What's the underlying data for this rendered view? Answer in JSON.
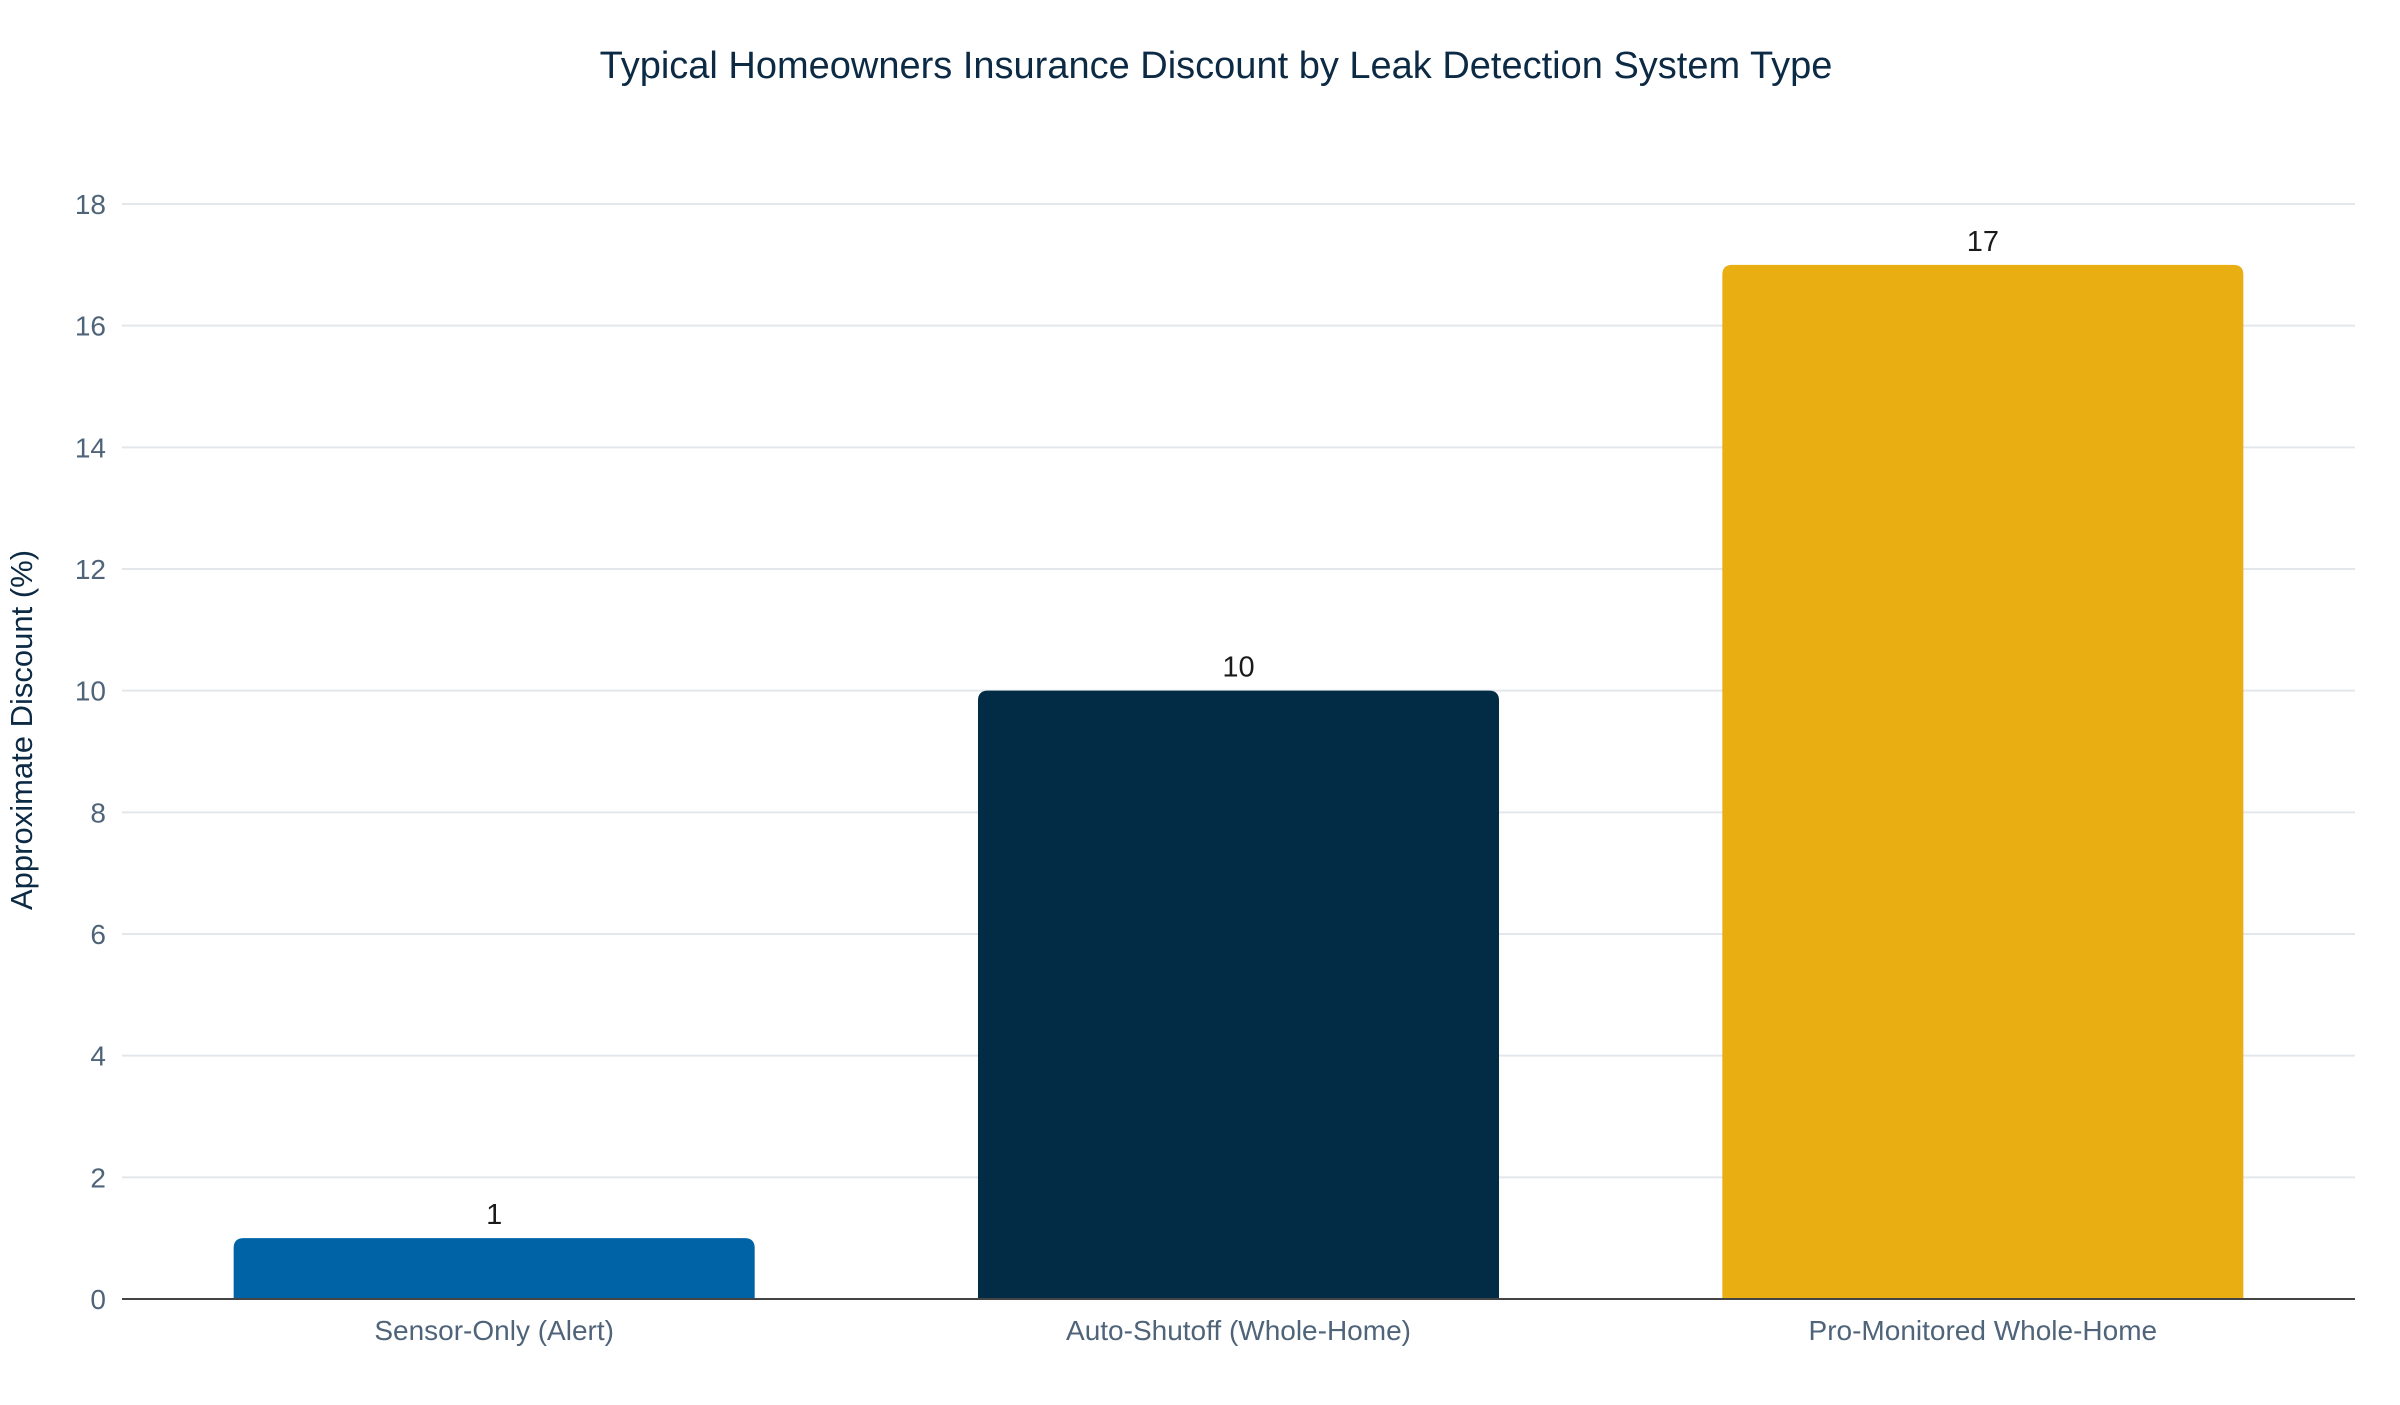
{
  "chart_data": {
    "type": "bar",
    "title": "Typical Homeowners Insurance Discount by Leak Detection System Type",
    "xlabel": "",
    "ylabel": "Approximate Discount (%)",
    "categories": [
      "Sensor-Only (Alert)",
      "Auto-Shutoff (Whole-Home)",
      "Pro-Monitored Whole-Home"
    ],
    "values": [
      1,
      10,
      17
    ],
    "data_labels": [
      "1",
      "10",
      "17"
    ],
    "bar_colors": [
      "#0063a6",
      "#022c45",
      "#e8ae12"
    ],
    "ylim": [
      0,
      18
    ],
    "yticks": [
      "0",
      "2",
      "4",
      "6",
      "8",
      "10",
      "12",
      "14",
      "16",
      "18"
    ],
    "grid": true,
    "legend": false
  },
  "colors": {
    "title": "#0d2a44",
    "tick_label": "#4f6479",
    "data_label": "#1a1a1a",
    "gridline": "#e3e6ea",
    "axis_line": "#444444"
  }
}
